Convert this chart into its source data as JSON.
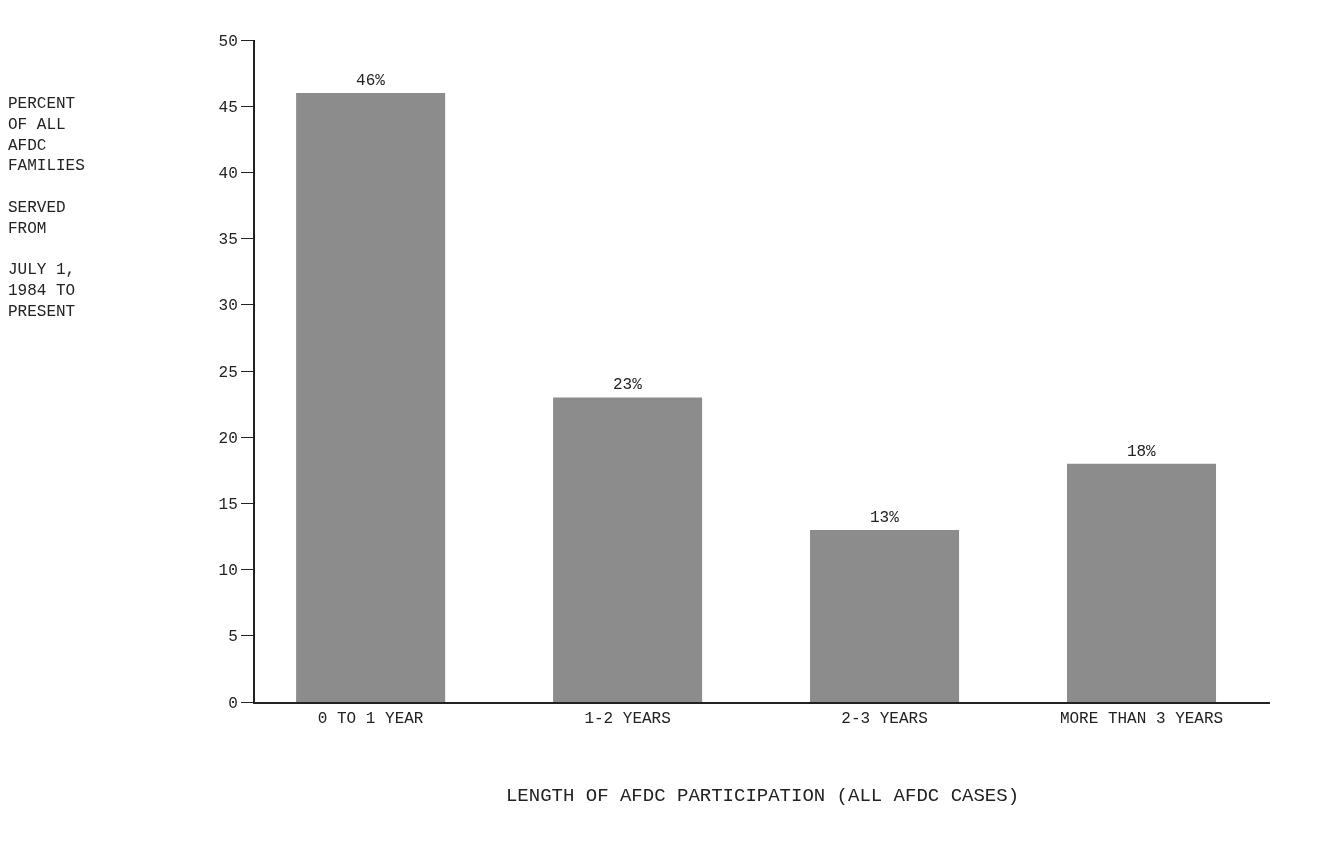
{
  "chart_data": {
    "type": "bar",
    "categories": [
      "0 TO 1 YEAR",
      "1-2 YEARS",
      "2-3 YEARS",
      "MORE THAN 3 YEARS"
    ],
    "values": [
      46,
      23,
      13,
      18
    ],
    "value_labels": [
      "46%",
      "23%",
      "13%",
      "18%"
    ],
    "color": "#8c8c8c",
    "ylim": [
      0,
      50
    ],
    "yticks": [
      0,
      5,
      10,
      15,
      20,
      25,
      30,
      35,
      40,
      45,
      50
    ],
    "ylabel": "PERCENT\nOF ALL\nAFDC\nFAMILIES\n\nSERVED\nFROM\n\nJULY 1,\n1984 TO\nPRESENT",
    "xlabel": "LENGTH OF AFDC PARTICIPATION (ALL AFDC CASES)"
  }
}
